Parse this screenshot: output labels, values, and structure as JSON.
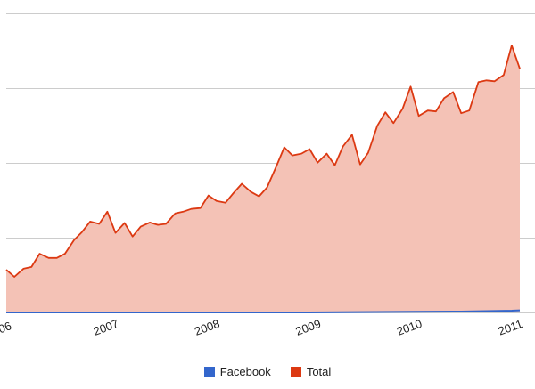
{
  "chart_data": {
    "type": "area",
    "title": "",
    "xlabel": "",
    "ylabel": "",
    "grid": true,
    "legend_position": "bottom",
    "x_ticks": [
      "06",
      "2007",
      "2008",
      "2009",
      "2010",
      "2011"
    ],
    "x_range": [
      2006.0,
      2011.08
    ],
    "y_range": [
      0,
      100
    ],
    "series": [
      {
        "name": "Facebook",
        "color": "#3366cc",
        "x": [
          2006.0,
          2007.0,
          2008.0,
          2009.0,
          2010.0,
          2010.5,
          2011.0,
          2011.08
        ],
        "values": [
          0,
          0,
          0,
          0,
          0.2,
          0.3,
          0.6,
          0.7
        ]
      },
      {
        "name": "Total",
        "color": "#dc3912",
        "fill": "#f4c2b6",
        "x": [
          2006.0,
          2006.08,
          2006.17,
          2006.25,
          2006.33,
          2006.42,
          2006.5,
          2006.58,
          2006.67,
          2006.75,
          2006.83,
          2006.92,
          2007.0,
          2007.08,
          2007.17,
          2007.25,
          2007.33,
          2007.42,
          2007.5,
          2007.58,
          2007.67,
          2007.75,
          2007.83,
          2007.92,
          2008.0,
          2008.08,
          2008.17,
          2008.25,
          2008.33,
          2008.42,
          2008.5,
          2008.58,
          2008.67,
          2008.75,
          2008.83,
          2008.92,
          2009.0,
          2009.08,
          2009.17,
          2009.25,
          2009.33,
          2009.42,
          2009.5,
          2009.58,
          2009.67,
          2009.75,
          2009.83,
          2009.92,
          2010.0,
          2010.08,
          2010.17,
          2010.25,
          2010.33,
          2010.42,
          2010.5,
          2010.58,
          2010.67,
          2010.75,
          2010.83,
          2010.92,
          2011.0,
          2011.08
        ],
        "values": [
          14.3,
          11.9,
          14.6,
          15.2,
          19.6,
          18.2,
          18.2,
          19.6,
          24.2,
          26.9,
          30.4,
          29.6,
          33.7,
          26.6,
          29.9,
          25.4,
          28.7,
          30.1,
          29.3,
          29.6,
          33.1,
          33.7,
          34.6,
          34.9,
          39.1,
          37.3,
          36.7,
          40.0,
          43.0,
          40.3,
          38.8,
          41.8,
          48.7,
          55.2,
          52.5,
          53.1,
          54.6,
          50.1,
          53.1,
          49.2,
          55.5,
          59.4,
          49.5,
          53.4,
          62.4,
          66.9,
          63.3,
          68.1,
          75.5,
          65.7,
          67.5,
          67.2,
          71.6,
          73.7,
          66.6,
          67.5,
          77.0,
          77.6,
          77.3,
          79.4,
          89.3,
          81.5
        ]
      }
    ]
  }
}
